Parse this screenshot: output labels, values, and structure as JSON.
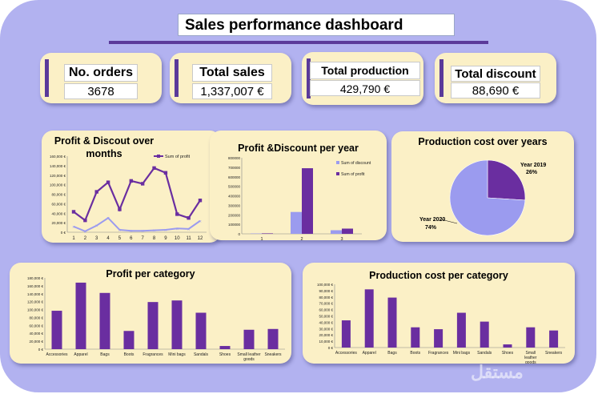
{
  "dashboard": {
    "title": "Sales performance dashboard"
  },
  "kpis": [
    {
      "label": "No. orders",
      "value": "3678"
    },
    {
      "label": "Total sales",
      "value": "1,337,007 €"
    },
    {
      "label": "Total production cost",
      "value": "429,790 €"
    },
    {
      "label": "Total discount",
      "value": "88,690 €"
    }
  ],
  "colors": {
    "background": "#b2b2f0",
    "card": "#fbf0c6",
    "accent": "#6a2ea0",
    "light_series": "#9b9bef"
  },
  "chart_data": [
    {
      "type": "line",
      "title": "Profit & Discout over months",
      "x": [
        1,
        2,
        3,
        4,
        5,
        6,
        7,
        8,
        9,
        10,
        11,
        12
      ],
      "y_ticks": [
        "0 €",
        "20,000 €",
        "40,000 €",
        "60,000 €",
        "80,000 €",
        "100,000 €",
        "120,000 €",
        "140,000 €",
        "160,000 €"
      ],
      "ylim": [
        0,
        160000
      ],
      "legend_position": "top-right",
      "series": [
        {
          "name": "Sum of profit",
          "values": [
            43000,
            25000,
            85000,
            105000,
            48000,
            108000,
            102000,
            135000,
            125000,
            38000,
            30000,
            67000
          ]
        },
        {
          "values": [
            12000,
            2000,
            14000,
            30000,
            5000,
            3000,
            3000,
            4000,
            5000,
            8000,
            7000,
            24000
          ]
        }
      ]
    },
    {
      "type": "bar",
      "title": "Profit &Discount per year",
      "categories": [
        "1",
        "2",
        "3"
      ],
      "y_ticks": [
        "0",
        "100000",
        "200000",
        "300000",
        "400000",
        "500000",
        "600000",
        "700000",
        "800000"
      ],
      "ylim": [
        0,
        800000
      ],
      "legend_position": "top-right",
      "series": [
        {
          "name": "Sum of discount",
          "values": [
            4000,
            230000,
            38000
          ]
        },
        {
          "name": "Sum of profit",
          "values": [
            5000,
            690000,
            55000
          ]
        }
      ]
    },
    {
      "type": "pie",
      "title": "Production cost over years",
      "categories": [
        "Year 2019",
        "Year 2020"
      ],
      "values": [
        26,
        74
      ],
      "labels": [
        "26%",
        "74%"
      ]
    },
    {
      "type": "bar",
      "title": "Profit per category",
      "categories": [
        "Accessories",
        "Apparel",
        "Bags",
        "Boots",
        "Fragrances",
        "Mini bags",
        "Sandals",
        "Shoes",
        "Small leather goods",
        "Sneakers"
      ],
      "category_lines": [
        [
          "Accessories"
        ],
        [
          "Apparel"
        ],
        [
          "Bags"
        ],
        [
          "Boots"
        ],
        [
          "Fragrances"
        ],
        [
          "Mini bags"
        ],
        [
          "Sandals"
        ],
        [
          "Shoes"
        ],
        [
          "Small leather",
          "goods"
        ],
        [
          "Sneakers"
        ]
      ],
      "values": [
        97000,
        168000,
        142000,
        46000,
        119000,
        123000,
        92000,
        8000,
        49000,
        51000
      ],
      "y_ticks": [
        "0 €",
        "20,000 €",
        "40,000 €",
        "60,000 €",
        "80,000 €",
        "100,000 €",
        "120,000 €",
        "140,000 €",
        "160,000 €",
        "180,000 €"
      ],
      "ylim": [
        0,
        180000
      ]
    },
    {
      "type": "bar",
      "title": "Production cost per category",
      "categories": [
        "Accessories",
        "Apparel",
        "Bags",
        "Boots",
        "Fragrances",
        "Mini bags",
        "Sandals",
        "Shoes",
        "Small leather goods",
        "Sneakers"
      ],
      "category_lines": [
        [
          "Accessories"
        ],
        [
          "Apparel"
        ],
        [
          "Bags"
        ],
        [
          "Boots"
        ],
        [
          "Fragrances"
        ],
        [
          "Mini bags"
        ],
        [
          "Sandals"
        ],
        [
          "Shoes"
        ],
        [
          "Small",
          "leather",
          "goods"
        ],
        [
          "Sneakers"
        ]
      ],
      "values": [
        43000,
        92000,
        79000,
        32000,
        29000,
        55000,
        41000,
        5000,
        32000,
        27000
      ],
      "y_ticks": [
        "0 €",
        "10,000 €",
        "20,000 €",
        "30,000 €",
        "40,000 €",
        "50,000 €",
        "60,000 €",
        "70,000 €",
        "80,000 €",
        "90,000 €",
        "100,000 €"
      ],
      "ylim": [
        0,
        100000
      ]
    }
  ]
}
